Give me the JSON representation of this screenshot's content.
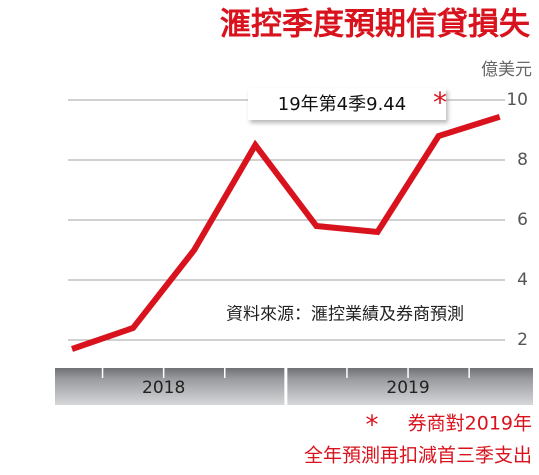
{
  "chart_data": {
    "type": "line",
    "title": "滙控季度預期信貸損失",
    "y_axis_label": "億美元",
    "categories": [
      null,
      null,
      null,
      null,
      null,
      null,
      null,
      null
    ],
    "groups": [
      {
        "label": "2018",
        "size": 4
      },
      {
        "label": "2019",
        "size": 4
      }
    ],
    "series": [
      {
        "name": null,
        "color": "#d9131d",
        "values": [
          1.7,
          2.4,
          5.0,
          8.5,
          5.8,
          5.6,
          8.8,
          9.44
        ]
      }
    ],
    "ylim": [
      1.3,
      10.3
    ],
    "yticks": [
      2,
      4,
      6,
      8,
      10
    ],
    "grid": true,
    "annotation": {
      "text": "19年第4季9.44",
      "mark": "*"
    },
    "source": "資料來源：滙控業績及券商預測",
    "footnote": {
      "mark": "*",
      "lines": [
        "券商對2019年",
        "全年預測再扣減首三季支出"
      ]
    }
  }
}
